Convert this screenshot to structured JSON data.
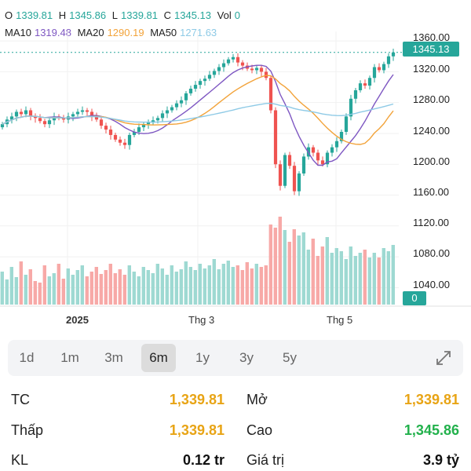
{
  "ohlc": {
    "o_label": "O",
    "o_value": "1339.81",
    "h_label": "H",
    "h_value": "1345.86",
    "l_label": "L",
    "l_value": "1339.81",
    "c_label": "C",
    "c_value": "1345.13",
    "vol_label": "Vol",
    "vol_value": "0"
  },
  "ma": {
    "ma10_label": "MA10",
    "ma10_value": "1319.48",
    "ma20_label": "MA20",
    "ma20_value": "1290.19",
    "ma50_label": "MA50",
    "ma50_value": "1271.63"
  },
  "price_axis": {
    "ticks": [
      "1360.00",
      "1320.00",
      "1280.00",
      "1240.00",
      "1200.00",
      "1160.00",
      "1120.00",
      "1080.00",
      "1040.00"
    ],
    "current_price": "1345.13",
    "current_volume": "0"
  },
  "time_axis": {
    "labels": [
      "2025",
      "Thg 3",
      "Thg 5"
    ]
  },
  "ranges": {
    "items": [
      "1d",
      "1m",
      "3m",
      "6m",
      "1y",
      "3y",
      "5y"
    ],
    "active": "6m"
  },
  "stats": {
    "tc_label": "TC",
    "tc_value": "1,339.81",
    "open_label": "Mở",
    "open_value": "1,339.81",
    "low_label": "Thấp",
    "low_value": "1,339.81",
    "high_label": "Cao",
    "high_value": "1,345.86",
    "kl_label": "KL",
    "kl_value": "0.12 tr",
    "value_label": "Giá trị",
    "value_value": "3.9 tỷ"
  },
  "colors": {
    "up": "#26a69a",
    "down": "#ef5350",
    "ma10": "#7e57c2",
    "ma20": "#f2a33a",
    "ma50": "#8ecae6",
    "accent": "#26a69a"
  },
  "chart_data": {
    "type": "candlestick",
    "ylim": [
      1020,
      1370
    ],
    "x_labels": [
      "2025",
      "Thg 3",
      "Thg 5"
    ],
    "closes": [
      1252,
      1258,
      1262,
      1268,
      1265,
      1270,
      1262,
      1260,
      1256,
      1252,
      1257,
      1262,
      1260,
      1258,
      1262,
      1265,
      1268,
      1270,
      1268,
      1262,
      1258,
      1250,
      1245,
      1238,
      1232,
      1228,
      1225,
      1238,
      1242,
      1248,
      1252,
      1254,
      1257,
      1260,
      1266,
      1270,
      1274,
      1279,
      1283,
      1292,
      1298,
      1303,
      1308,
      1311,
      1316,
      1321,
      1326,
      1331,
      1336,
      1339,
      1332,
      1328,
      1324,
      1322,
      1325,
      1320,
      1312,
      1270,
      1200,
      1172,
      1212,
      1198,
      1165,
      1188,
      1210,
      1222,
      1215,
      1205,
      1200,
      1215,
      1222,
      1230,
      1242,
      1262,
      1285,
      1296,
      1305,
      1302,
      1312,
      1326,
      1322,
      1330,
      1340,
      1345
    ],
    "volumes": [
      42,
      32,
      48,
      35,
      55,
      38,
      45,
      30,
      28,
      50,
      36,
      40,
      52,
      33,
      46,
      38,
      44,
      50,
      36,
      42,
      48,
      39,
      44,
      52,
      40,
      45,
      38,
      50,
      42,
      36,
      48,
      44,
      40,
      52,
      46,
      38,
      50,
      42,
      45,
      55,
      48,
      44,
      52,
      46,
      50,
      58,
      45,
      52,
      56,
      48,
      50,
      44,
      54,
      46,
      52,
      48,
      50,
      102,
      98,
      112,
      95,
      80,
      96,
      88,
      92,
      70,
      84,
      62,
      74,
      86,
      66,
      72,
      68,
      58,
      74,
      62,
      66,
      70,
      60,
      66,
      60,
      72,
      68,
      76
    ],
    "ma10_last": 1319.48,
    "ma20_last": 1290.19,
    "ma50_last": 1271.63
  }
}
